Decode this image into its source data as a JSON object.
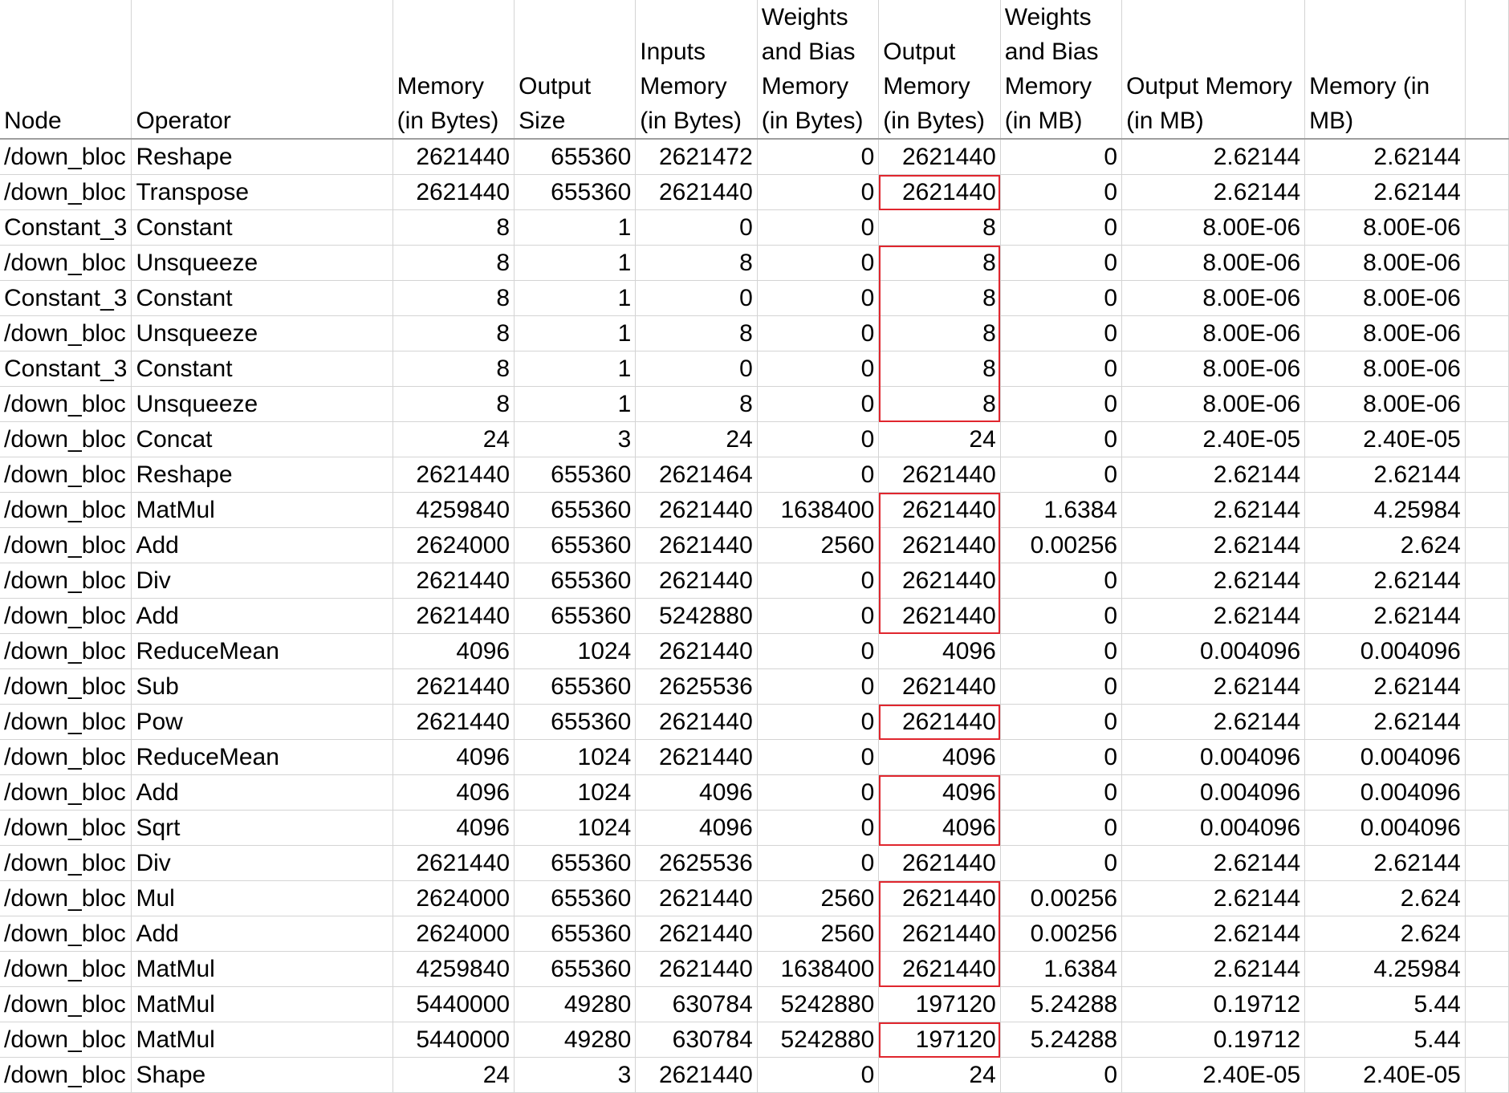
{
  "sheet": {
    "columns": [
      "Node",
      "Operator",
      "Memory (in Bytes)",
      "Output Size",
      "Inputs Memory (in Bytes)",
      "Weights and Bias Memory (in Bytes)",
      "Output Memory (in Bytes)",
      "Weights and Bias Memory (in MB)",
      "Output Memory (in MB)",
      "Memory (in MB)"
    ],
    "rows": [
      [
        "/down_bloc",
        "Reshape",
        "2621440",
        "655360",
        "2621472",
        "0",
        "2621440",
        "0",
        "2.62144",
        "2.62144"
      ],
      [
        "/down_bloc",
        "Transpose",
        "2621440",
        "655360",
        "2621440",
        "0",
        "2621440",
        "0",
        "2.62144",
        "2.62144"
      ],
      [
        "Constant_3",
        "Constant",
        "8",
        "1",
        "0",
        "0",
        "8",
        "0",
        "8.00E-06",
        "8.00E-06"
      ],
      [
        "/down_bloc",
        "Unsqueeze",
        "8",
        "1",
        "8",
        "0",
        "8",
        "0",
        "8.00E-06",
        "8.00E-06"
      ],
      [
        "Constant_3",
        "Constant",
        "8",
        "1",
        "0",
        "0",
        "8",
        "0",
        "8.00E-06",
        "8.00E-06"
      ],
      [
        "/down_bloc",
        "Unsqueeze",
        "8",
        "1",
        "8",
        "0",
        "8",
        "0",
        "8.00E-06",
        "8.00E-06"
      ],
      [
        "Constant_3",
        "Constant",
        "8",
        "1",
        "0",
        "0",
        "8",
        "0",
        "8.00E-06",
        "8.00E-06"
      ],
      [
        "/down_bloc",
        "Unsqueeze",
        "8",
        "1",
        "8",
        "0",
        "8",
        "0",
        "8.00E-06",
        "8.00E-06"
      ],
      [
        "/down_bloc",
        "Concat",
        "24",
        "3",
        "24",
        "0",
        "24",
        "0",
        "2.40E-05",
        "2.40E-05"
      ],
      [
        "/down_bloc",
        "Reshape",
        "2621440",
        "655360",
        "2621464",
        "0",
        "2621440",
        "0",
        "2.62144",
        "2.62144"
      ],
      [
        "/down_bloc",
        "MatMul",
        "4259840",
        "655360",
        "2621440",
        "1638400",
        "2621440",
        "1.6384",
        "2.62144",
        "4.25984"
      ],
      [
        "/down_bloc",
        "Add",
        "2624000",
        "655360",
        "2621440",
        "2560",
        "2621440",
        "0.00256",
        "2.62144",
        "2.624"
      ],
      [
        "/down_bloc",
        "Div",
        "2621440",
        "655360",
        "2621440",
        "0",
        "2621440",
        "0",
        "2.62144",
        "2.62144"
      ],
      [
        "/down_bloc",
        "Add",
        "2621440",
        "655360",
        "5242880",
        "0",
        "2621440",
        "0",
        "2.62144",
        "2.62144"
      ],
      [
        "/down_bloc",
        "ReduceMean",
        "4096",
        "1024",
        "2621440",
        "0",
        "4096",
        "0",
        "0.004096",
        "0.004096"
      ],
      [
        "/down_bloc",
        "Sub",
        "2621440",
        "655360",
        "2625536",
        "0",
        "2621440",
        "0",
        "2.62144",
        "2.62144"
      ],
      [
        "/down_bloc",
        "Pow",
        "2621440",
        "655360",
        "2621440",
        "0",
        "2621440",
        "0",
        "2.62144",
        "2.62144"
      ],
      [
        "/down_bloc",
        "ReduceMean",
        "4096",
        "1024",
        "2621440",
        "0",
        "4096",
        "0",
        "0.004096",
        "0.004096"
      ],
      [
        "/down_bloc",
        "Add",
        "4096",
        "1024",
        "4096",
        "0",
        "4096",
        "0",
        "0.004096",
        "0.004096"
      ],
      [
        "/down_bloc",
        "Sqrt",
        "4096",
        "1024",
        "4096",
        "0",
        "4096",
        "0",
        "0.004096",
        "0.004096"
      ],
      [
        "/down_bloc",
        "Div",
        "2621440",
        "655360",
        "2625536",
        "0",
        "2621440",
        "0",
        "2.62144",
        "2.62144"
      ],
      [
        "/down_bloc",
        "Mul",
        "2624000",
        "655360",
        "2621440",
        "2560",
        "2621440",
        "0.00256",
        "2.62144",
        "2.624"
      ],
      [
        "/down_bloc",
        "Add",
        "2624000",
        "655360",
        "2621440",
        "2560",
        "2621440",
        "0.00256",
        "2.62144",
        "2.624"
      ],
      [
        "/down_bloc",
        "MatMul",
        "4259840",
        "655360",
        "2621440",
        "1638400",
        "2621440",
        "1.6384",
        "2.62144",
        "4.25984"
      ],
      [
        "/down_bloc",
        "MatMul",
        "5440000",
        "49280",
        "630784",
        "5242880",
        "197120",
        "5.24288",
        "0.19712",
        "5.44"
      ],
      [
        "/down_bloc",
        "MatMul",
        "5440000",
        "49280",
        "630784",
        "5242880",
        "197120",
        "5.24288",
        "0.19712",
        "5.44"
      ],
      [
        "/down_bloc",
        "Shape",
        "24",
        "3",
        "2621440",
        "0",
        "24",
        "0",
        "2.40E-05",
        "2.40E-05"
      ]
    ],
    "highlighted_output_ranges": [
      {
        "first_row": 2,
        "last_row": 2
      },
      {
        "first_row": 4,
        "last_row": 8
      },
      {
        "first_row": 11,
        "last_row": 14
      },
      {
        "first_row": 17,
        "last_row": 17
      },
      {
        "first_row": 19,
        "last_row": 20
      },
      {
        "first_row": 22,
        "last_row": 24
      },
      {
        "first_row": 26,
        "last_row": 26
      }
    ],
    "highlight_color": "#e0262e",
    "gridline_color": "#d4d4d4"
  }
}
